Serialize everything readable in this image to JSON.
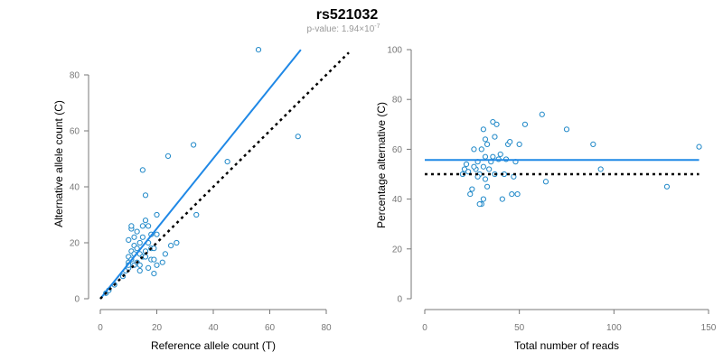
{
  "figure": {
    "title": "rs521032",
    "subtitle_prefix": "p-value: 1.94×10",
    "subtitle_exponent": "-7"
  },
  "colors": {
    "points": "#1f88c8",
    "fit_line": "#1f88e6",
    "reference_line": "#000000",
    "axis": "#777777"
  },
  "chart_data": [
    {
      "type": "scatter",
      "title": "",
      "xlabel": "Reference allele count (T)",
      "ylabel": "Alternative allele count (C)",
      "xlim": [
        0,
        80
      ],
      "ylim": [
        0,
        90
      ],
      "xticks": [
        0,
        20,
        40,
        60,
        80
      ],
      "yticks": [
        0,
        20,
        40,
        60,
        80
      ],
      "grid": false,
      "points": [
        [
          2,
          2
        ],
        [
          3,
          3
        ],
        [
          5,
          5
        ],
        [
          8,
          8
        ],
        [
          9,
          10
        ],
        [
          10,
          11
        ],
        [
          10,
          13
        ],
        [
          10,
          15
        ],
        [
          11,
          14
        ],
        [
          11,
          17
        ],
        [
          12,
          12
        ],
        [
          12,
          16
        ],
        [
          12,
          19
        ],
        [
          12,
          22
        ],
        [
          13,
          13
        ],
        [
          13,
          24
        ],
        [
          14,
          10
        ],
        [
          14,
          16
        ],
        [
          14,
          20
        ],
        [
          15,
          15
        ],
        [
          15,
          22
        ],
        [
          15,
          26
        ],
        [
          16,
          17
        ],
        [
          16,
          28
        ],
        [
          16,
          37
        ],
        [
          17,
          11
        ],
        [
          17,
          20
        ],
        [
          17,
          26
        ],
        [
          18,
          14
        ],
        [
          18,
          18
        ],
        [
          18,
          23
        ],
        [
          19,
          9
        ],
        [
          19,
          14
        ],
        [
          19,
          18
        ],
        [
          20,
          12
        ],
        [
          20,
          23
        ],
        [
          20,
          30
        ],
        [
          10,
          21
        ],
        [
          11,
          25
        ],
        [
          11,
          26
        ],
        [
          13,
          18
        ],
        [
          14,
          12
        ],
        [
          15,
          46
        ],
        [
          16,
          15
        ],
        [
          22,
          13
        ],
        [
          23,
          16
        ],
        [
          24,
          51
        ],
        [
          25,
          19
        ],
        [
          27,
          20
        ],
        [
          33,
          55
        ],
        [
          34,
          30
        ],
        [
          45,
          49
        ],
        [
          56,
          89
        ],
        [
          70,
          58
        ],
        [
          10,
          12
        ]
      ],
      "series": [
        {
          "kind": "fit",
          "x": [
            0,
            71
          ],
          "y": [
            0,
            89
          ]
        },
        {
          "kind": "reference",
          "x": [
            0,
            88
          ],
          "y": [
            0,
            88
          ]
        }
      ]
    },
    {
      "type": "scatter",
      "title": "",
      "xlabel": "Total number of reads",
      "ylabel": "Percentage alternative (C)",
      "xlim": [
        0,
        150
      ],
      "ylim": [
        0,
        100
      ],
      "xticks": [
        0,
        50,
        100,
        150
      ],
      "yticks": [
        0,
        20,
        40,
        60,
        80,
        100
      ],
      "grid": false,
      "points": [
        [
          20,
          50
        ],
        [
          21,
          52
        ],
        [
          22,
          54
        ],
        [
          23,
          51
        ],
        [
          24,
          42
        ],
        [
          25,
          44
        ],
        [
          26,
          60
        ],
        [
          27,
          52
        ],
        [
          28,
          55
        ],
        [
          29,
          50
        ],
        [
          30,
          38
        ],
        [
          31,
          40
        ],
        [
          32,
          48
        ],
        [
          30,
          60
        ],
        [
          31,
          68
        ],
        [
          32,
          64
        ],
        [
          33,
          62
        ],
        [
          34,
          52
        ],
        [
          35,
          55
        ],
        [
          36,
          71
        ],
        [
          37,
          65
        ],
        [
          38,
          70
        ],
        [
          39,
          56
        ],
        [
          40,
          58
        ],
        [
          41,
          40
        ],
        [
          42,
          50
        ],
        [
          43,
          56
        ],
        [
          44,
          62
        ],
        [
          45,
          63
        ],
        [
          46,
          42
        ],
        [
          48,
          55
        ],
        [
          49,
          42
        ],
        [
          50,
          62
        ],
        [
          53,
          70
        ],
        [
          62,
          74
        ],
        [
          64,
          47
        ],
        [
          75,
          68
        ],
        [
          89,
          62
        ],
        [
          93,
          52
        ],
        [
          128,
          45
        ],
        [
          145,
          61
        ],
        [
          26,
          53
        ],
        [
          29,
          38
        ],
        [
          33,
          45
        ],
        [
          31,
          53
        ],
        [
          37,
          50
        ],
        [
          47,
          49
        ],
        [
          36,
          57
        ],
        [
          32,
          57
        ],
        [
          28,
          49
        ]
      ],
      "series": [
        {
          "kind": "fit",
          "x": [
            0,
            145
          ],
          "y": [
            55.7,
            55.7
          ]
        },
        {
          "kind": "reference",
          "x": [
            0,
            145
          ],
          "y": [
            50,
            50
          ]
        }
      ]
    }
  ]
}
